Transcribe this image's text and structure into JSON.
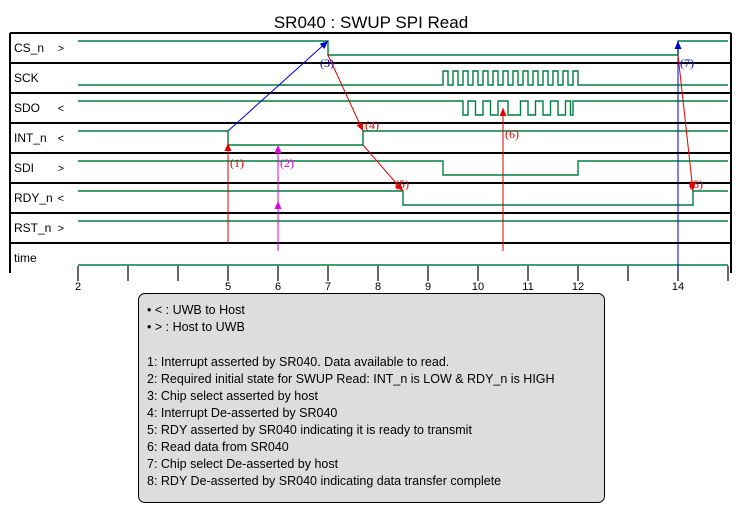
{
  "title": "SR040 : SWUP SPI Read",
  "colors": {
    "wave": "#007f3f",
    "arrow_red": "#e00000",
    "arrow_blue": "#0000cc",
    "arrow_magenta": "#e000e0",
    "frame": "#000000"
  },
  "signals": [
    {
      "name": "CS_n",
      "dir": ">"
    },
    {
      "name": "SCK",
      "dir": ""
    },
    {
      "name": "SDO",
      "dir": "<"
    },
    {
      "name": "INT_n",
      "dir": "<"
    },
    {
      "name": "SDI",
      "dir": ">"
    },
    {
      "name": "RDY_n",
      "dir": "<"
    },
    {
      "name": "RST_n",
      "dir": ">"
    },
    {
      "name": "time",
      "dir": ""
    }
  ],
  "waveforms": {
    "CS_n": {
      "type": "steps",
      "start": 1,
      "edges": [
        7,
        14
      ]
    },
    "SCK": {
      "type": "clock",
      "start": 0,
      "from": 9.3,
      "to": 12.0,
      "period": 0.2
    },
    "SDO": {
      "type": "levels",
      "segments": [
        [
          2,
          9.7,
          1
        ],
        [
          9.7,
          9.8,
          0
        ],
        [
          9.8,
          9.95,
          1
        ],
        [
          9.95,
          10.1,
          0
        ],
        [
          10.1,
          10.25,
          1
        ],
        [
          10.25,
          10.4,
          0
        ],
        [
          10.4,
          10.6,
          1
        ],
        [
          10.6,
          10.85,
          0
        ],
        [
          10.85,
          11.0,
          1
        ],
        [
          11.0,
          11.15,
          0
        ],
        [
          11.15,
          11.3,
          1
        ],
        [
          11.3,
          11.45,
          0
        ],
        [
          11.45,
          11.6,
          1
        ],
        [
          11.6,
          11.75,
          0
        ],
        [
          11.75,
          11.85,
          1
        ],
        [
          11.85,
          11.9,
          0
        ],
        [
          11.9,
          15,
          1
        ]
      ]
    },
    "INT_n": {
      "type": "steps",
      "start": 1,
      "edges": [
        5,
        7.7
      ]
    },
    "SDI": {
      "type": "steps",
      "start": 1,
      "edges": [
        9.3,
        12
      ]
    },
    "RDY_n": {
      "type": "steps",
      "start": 1,
      "edges": [
        8.5,
        14.3
      ]
    },
    "RST_n": {
      "type": "steps",
      "start": 1,
      "edges": []
    },
    "time": {
      "type": "steps",
      "start": 0,
      "edges": []
    }
  },
  "time_axis": {
    "min": 2,
    "max": 15,
    "major_ticks": [
      2,
      5,
      6,
      7,
      8,
      9,
      10,
      11,
      12,
      14
    ],
    "minor_ticks": [
      3,
      4,
      13,
      15
    ],
    "tick_labels": [
      "2",
      "5",
      "6",
      "7",
      "8",
      "9",
      "10",
      "11",
      "12",
      "14"
    ]
  },
  "arrows": [
    {
      "label": "(1)",
      "color": "red",
      "from": [
        5,
        "RST_n",
        "bottom"
      ],
      "to": [
        5,
        "INT_n",
        "mid"
      ],
      "label_at": "from-top"
    },
    {
      "label": "(2)",
      "color": "magenta",
      "from": [
        6,
        "time",
        "top"
      ],
      "to": [
        6,
        "INT_n",
        "low"
      ],
      "label_at": "from-top"
    },
    {
      "label": "(2)",
      "color": "magenta",
      "from": [
        6,
        "time",
        "top"
      ],
      "to": [
        6,
        "RDY_n",
        "lowmid"
      ],
      "label_at": "none"
    },
    {
      "label": "(3)",
      "color": "blue",
      "from": [
        5,
        "INT_n",
        "mid"
      ],
      "to": [
        7,
        "CS_n",
        "mid"
      ],
      "label_at": "to"
    },
    {
      "label": "(4)",
      "color": "red",
      "from": [
        7,
        "CS_n",
        "mid"
      ],
      "to": [
        7.7,
        "INT_n",
        "top"
      ],
      "label_at": "to"
    },
    {
      "label": "(5)",
      "color": "red",
      "from": [
        7.7,
        "INT_n",
        "mid"
      ],
      "to": [
        8.5,
        "RDY_n",
        "top"
      ],
      "label_at": "to"
    },
    {
      "label": "(6)",
      "color": "red",
      "from": [
        10.5,
        "time",
        "top"
      ],
      "to": [
        10.5,
        "SDO",
        "mid"
      ],
      "label_at": "from-top"
    },
    {
      "label": "(7)",
      "color": "blue",
      "from": [
        14,
        "time",
        "top"
      ],
      "to": [
        14,
        "CS_n",
        "mid"
      ],
      "label_at": "to"
    },
    {
      "label": "(8)",
      "color": "red",
      "from": [
        14,
        "CS_n",
        "mid"
      ],
      "to": [
        14.3,
        "RDY_n",
        "top"
      ],
      "label_at": "to"
    }
  ],
  "legend": [
    "• < : UWB to Host",
    "• > : Host to UWB",
    "",
    "1: Interrupt asserted by SR040. Data available to read.",
    "2: Required initial state for SWUP Read: INT_n is LOW & RDY_n is HIGH",
    "3: Chip select asserted by host",
    "4: Interrupt De-asserted by SR040",
    "5: RDY asserted by SR040 indicating it is ready to transmit",
    "6: Read data from SR040",
    "7: Chip select De-asserted by host",
    "8: RDY De-asserted by SR040 indicating data transfer complete"
  ]
}
